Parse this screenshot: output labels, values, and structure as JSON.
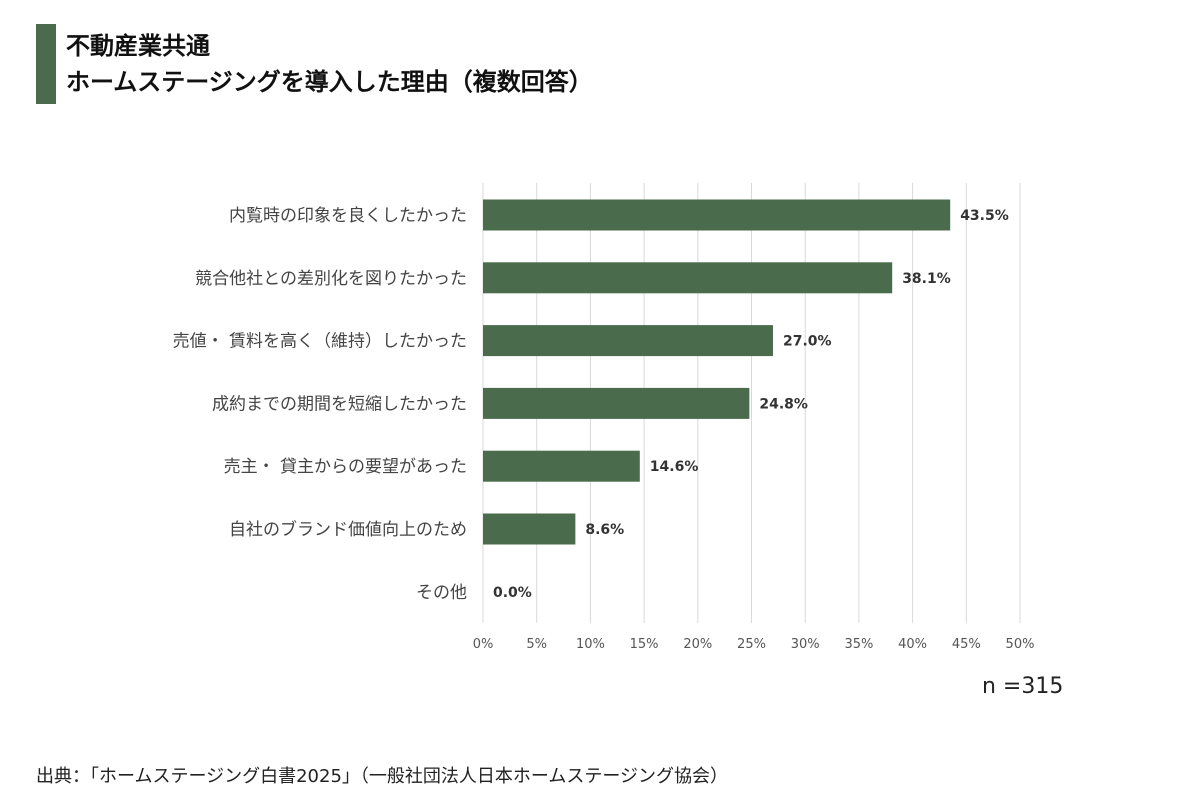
{
  "header": {
    "title_line1": "不動産業共通",
    "title_line2": "ホームステージングを導入した理由（複数回答）"
  },
  "colors": {
    "bar": "#4a6b4c",
    "grid": "#d9d9d9",
    "title_bar": "#4a6b4c"
  },
  "chart_data": {
    "type": "bar",
    "orientation": "horizontal",
    "title": "不動産業共通 ホームステージングを導入した理由（複数回答）",
    "categories": [
      "内覧時の印象を良くしたかった",
      "競合他社との差別化を図りたかった",
      "売値・ 賃料を高く（維持）したかった",
      "成約までの期間を短縮したかった",
      "売主・ 貸主からの要望があった",
      "自社のブランド価値向上のため",
      "その他"
    ],
    "values": [
      43.5,
      38.1,
      27.0,
      24.8,
      14.6,
      8.6,
      0.0
    ],
    "value_labels": [
      "43.5%",
      "38.1%",
      "27.0%",
      "24.8%",
      "14.6%",
      "8.6%",
      "0.0%"
    ],
    "x_ticks": [
      "0%",
      "5%",
      "10%",
      "15%",
      "20%",
      "25%",
      "30%",
      "35%",
      "40%",
      "45%",
      "50%"
    ],
    "xlim": [
      0,
      50
    ],
    "grid": true,
    "legend": "none"
  },
  "footer": {
    "n_label": "n =315",
    "source": "出典：「ホームステージング白書2025」（一般社団法人日本ホームステージング協会）"
  }
}
